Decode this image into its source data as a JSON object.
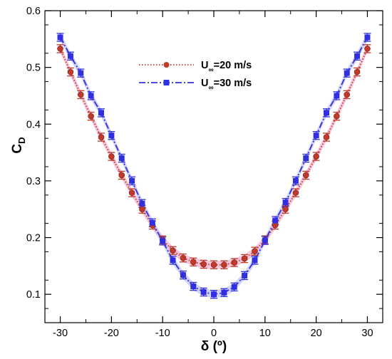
{
  "chart_data": {
    "type": "line",
    "xlabel": "δ (º)",
    "ylabel": {
      "main": "C",
      "sub": "D"
    },
    "xlim": [
      -33,
      33
    ],
    "ylim": [
      0.05,
      0.6
    ],
    "xticks": [
      -30,
      -20,
      -10,
      0,
      10,
      20,
      30
    ],
    "yticks": [
      0.1,
      0.2,
      0.3,
      0.4,
      0.5,
      0.6
    ],
    "grid": false,
    "legend_position": "top-center",
    "x": [
      -30,
      -28,
      -26,
      -24,
      -22,
      -20,
      -18,
      -16,
      -14,
      -12,
      -10,
      -8,
      -6,
      -4,
      -2,
      0,
      2,
      4,
      6,
      8,
      10,
      12,
      14,
      16,
      18,
      20,
      22,
      24,
      26,
      28,
      30
    ],
    "series": [
      {
        "name_prefix": "U",
        "name_sub": "∞",
        "name_suffix": "=20 m/s",
        "color": "#c0392b",
        "marker": "circle",
        "line_style": "dotted",
        "band_color": "#f2b6cf",
        "values": [
          0.533,
          0.492,
          0.452,
          0.414,
          0.377,
          0.343,
          0.31,
          0.279,
          0.25,
          0.222,
          0.196,
          0.177,
          0.164,
          0.157,
          0.153,
          0.152,
          0.152,
          0.156,
          0.163,
          0.176,
          0.196,
          0.222,
          0.25,
          0.279,
          0.31,
          0.343,
          0.377,
          0.414,
          0.452,
          0.492,
          0.533
        ]
      },
      {
        "name_prefix": "U",
        "name_sub": "∞",
        "name_suffix": "=30 m/s",
        "color": "#2f2fe0",
        "marker": "square",
        "line_style": "dashdot",
        "band_color": "#c8c8f2",
        "values": [
          0.553,
          0.52,
          0.49,
          0.45,
          0.42,
          0.38,
          0.34,
          0.3,
          0.26,
          0.226,
          0.194,
          0.16,
          0.134,
          0.114,
          0.104,
          0.1,
          0.103,
          0.113,
          0.133,
          0.16,
          0.195,
          0.23,
          0.262,
          0.3,
          0.34,
          0.38,
          0.42,
          0.45,
          0.49,
          0.52,
          0.553
        ]
      }
    ]
  }
}
